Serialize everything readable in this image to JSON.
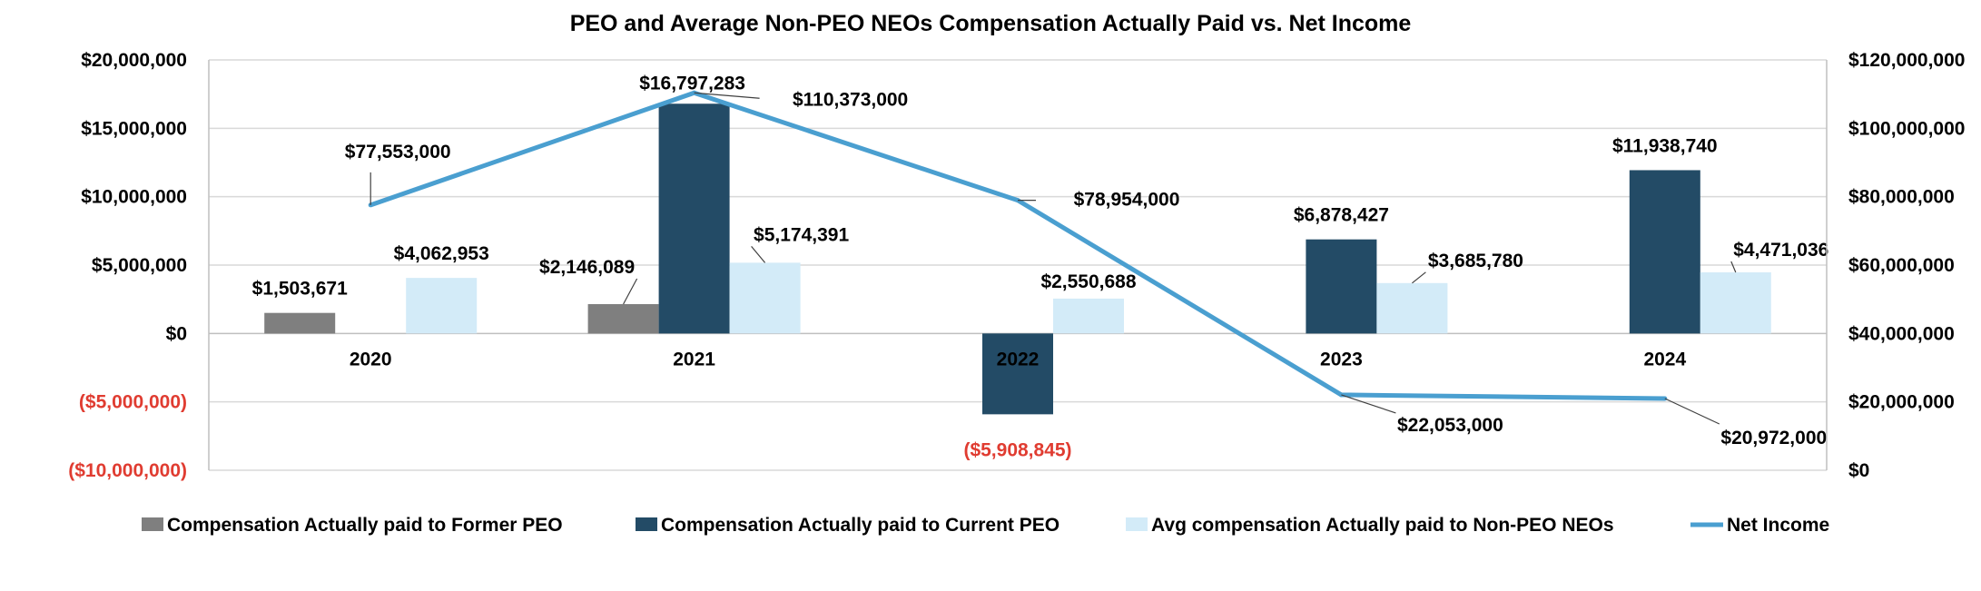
{
  "chart_data": {
    "type": "bar",
    "title": "PEO and Average Non-PEO NEOs Compensation Actually Paid vs. Net Income",
    "categories": [
      "2020",
      "2021",
      "2022",
      "2023",
      "2024"
    ],
    "series": [
      {
        "name": "Compensation Actually paid to Former PEO",
        "type": "bar",
        "axis": "left",
        "color": "#7f7f7f",
        "values": [
          1503671,
          2146089,
          null,
          null,
          null
        ],
        "labels": [
          "$1,503,671",
          "$2,146,089",
          "",
          "",
          ""
        ]
      },
      {
        "name": "Compensation Actually paid to Current PEO",
        "type": "bar",
        "axis": "left",
        "color": "#234b66",
        "values": [
          null,
          16797283,
          -5908845,
          6878427,
          11938740
        ],
        "labels": [
          "",
          "$16,797,283",
          "($5,908,845)",
          "$6,878,427",
          "$11,938,740"
        ]
      },
      {
        "name": "Avg compensation Actually paid to Non-PEO NEOs",
        "type": "bar",
        "axis": "left",
        "color": "#d3ebf8",
        "values": [
          4062953,
          5174391,
          2550688,
          3685780,
          4471036
        ],
        "labels": [
          "$4,062,953",
          "$5,174,391",
          "$2,550,688",
          "$3,685,780",
          "$4,471,036"
        ]
      },
      {
        "name": "Net Income",
        "type": "line",
        "axis": "right",
        "color": "#4a9fd0",
        "values": [
          77553000,
          110373000,
          78954000,
          22053000,
          20972000
        ],
        "labels": [
          "$77,553,000",
          "$110,373,000",
          "$78,954,000",
          "$22,053,000",
          "$20,972,000"
        ]
      }
    ],
    "y_left": {
      "ylim": [
        -10000000,
        20000000
      ],
      "ticks": [
        {
          "value": 20000000,
          "label": "$20,000,000"
        },
        {
          "value": 15000000,
          "label": "$15,000,000"
        },
        {
          "value": 10000000,
          "label": "$10,000,000"
        },
        {
          "value": 5000000,
          "label": "$5,000,000"
        },
        {
          "value": 0,
          "label": "$0"
        },
        {
          "value": -5000000,
          "label": "($5,000,000)"
        },
        {
          "value": -10000000,
          "label": "($10,000,000)"
        }
      ]
    },
    "y_right": {
      "ylim": [
        0,
        120000000
      ],
      "ticks": [
        {
          "value": 120000000,
          "label": "$120,000,000"
        },
        {
          "value": 100000000,
          "label": "$100,000,000"
        },
        {
          "value": 80000000,
          "label": "$80,000,000"
        },
        {
          "value": 60000000,
          "label": "$60,000,000"
        },
        {
          "value": 40000000,
          "label": "$40,000,000"
        },
        {
          "value": 20000000,
          "label": "$20,000,000"
        },
        {
          "value": 0,
          "label": "$0"
        }
      ]
    },
    "grid": true,
    "legend": "bottom",
    "negative_color": "#e03c31"
  }
}
